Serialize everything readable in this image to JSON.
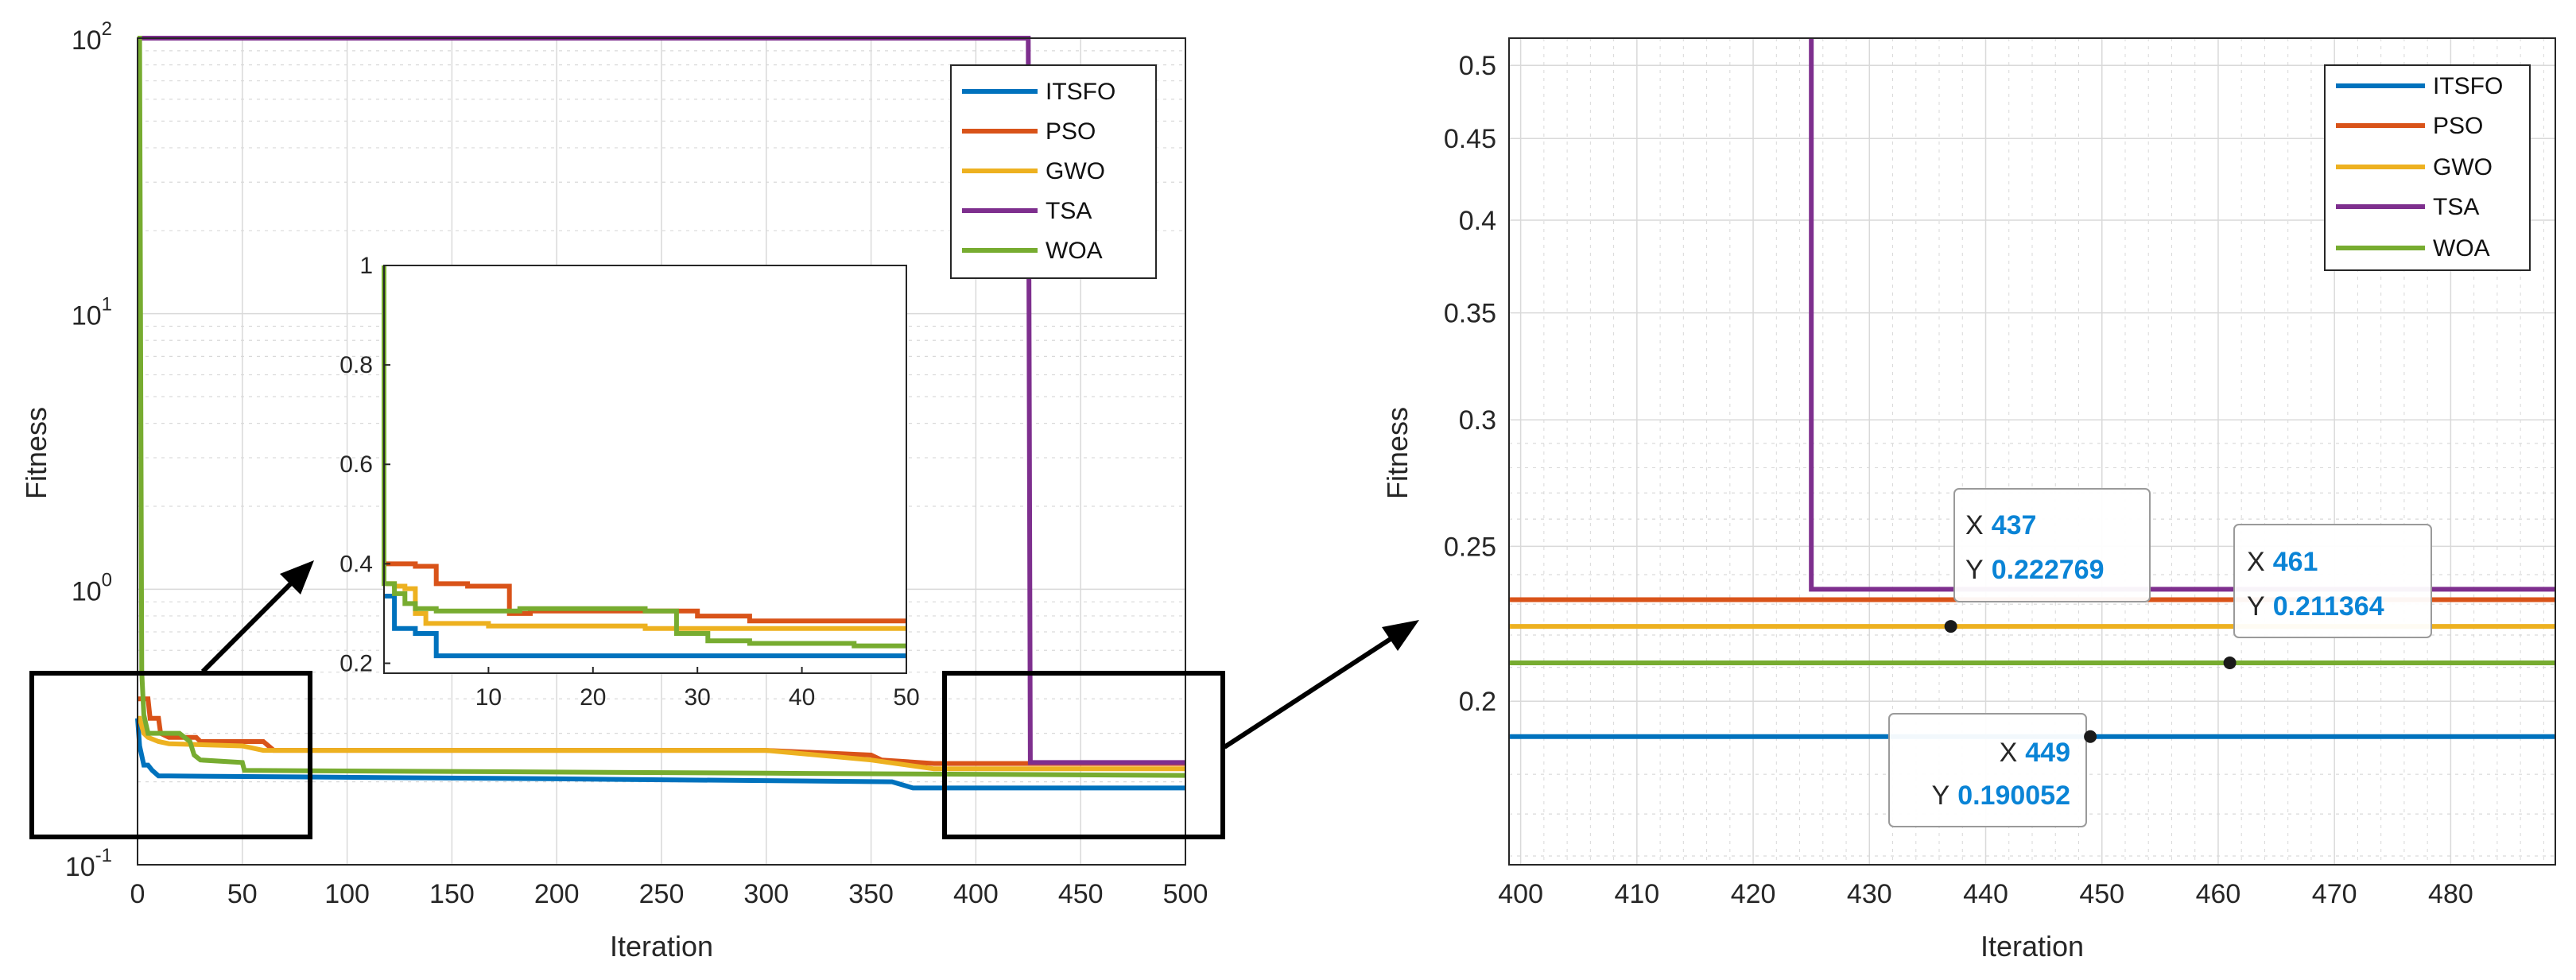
{
  "chart_data": [
    {
      "id": "main",
      "type": "line",
      "xlabel": "Iteration",
      "ylabel": "Fitness",
      "yscale": "log",
      "xlim": [
        0,
        500
      ],
      "ylim": [
        0.1,
        100
      ],
      "xticks": [
        0,
        50,
        100,
        150,
        200,
        250,
        300,
        350,
        400,
        450,
        500
      ],
      "xtick_labels": [
        "0",
        "50",
        "100",
        "150",
        "200",
        "250",
        "300",
        "350",
        "400",
        "450",
        "500"
      ],
      "yticks": [
        0.1,
        1,
        10,
        100
      ],
      "ytick_bases": [
        "10",
        "10",
        "10",
        "10"
      ],
      "ytick_exps": [
        "-1",
        "0",
        "1",
        "2"
      ],
      "grid": true,
      "legend_position": "top-right",
      "series": [
        {
          "name": "ITSFO",
          "color": "#0072BD",
          "x": [
            0,
            1,
            3,
            5,
            7,
            10,
            15,
            200,
            360,
            365,
            370,
            380,
            500
          ],
          "y": [
            0.34,
            0.27,
            0.23,
            0.23,
            0.22,
            0.21,
            0.21,
            0.205,
            0.2,
            0.195,
            0.19,
            0.19,
            0.19
          ]
        },
        {
          "name": "PSO",
          "color": "#D95319",
          "x": [
            0,
            1,
            5,
            6,
            10,
            11,
            15,
            28,
            30,
            60,
            65,
            300,
            350,
            355,
            380,
            500
          ],
          "y": [
            0.4,
            0.4,
            0.4,
            0.34,
            0.34,
            0.3,
            0.29,
            0.29,
            0.28,
            0.28,
            0.26,
            0.26,
            0.25,
            0.24,
            0.233,
            0.233
          ]
        },
        {
          "name": "GWO",
          "color": "#EDB120",
          "x": [
            0,
            1,
            3,
            5,
            10,
            15,
            50,
            60,
            300,
            350,
            380,
            500
          ],
          "y": [
            0.34,
            0.34,
            0.3,
            0.29,
            0.28,
            0.275,
            0.27,
            0.26,
            0.26,
            0.24,
            0.223,
            0.223
          ]
        },
        {
          "name": "TSA",
          "color": "#7E2F8E",
          "x": [
            0,
            1,
            424,
            425,
            426,
            500
          ],
          "y": [
            100,
            100,
            100,
            100,
            0.235,
            0.235
          ]
        },
        {
          "name": "WOA",
          "color": "#77AC30",
          "x": [
            0,
            1,
            2,
            3,
            5,
            10,
            20,
            25,
            27,
            30,
            50,
            51,
            300,
            500
          ],
          "y": [
            100,
            100,
            0.5,
            0.35,
            0.3,
            0.3,
            0.3,
            0.28,
            0.25,
            0.24,
            0.235,
            0.22,
            0.215,
            0.211
          ]
        }
      ]
    },
    {
      "id": "inset",
      "type": "line",
      "xlim": [
        0,
        50
      ],
      "ylim": [
        0.18,
        1
      ],
      "xticks": [
        10,
        20,
        30,
        40,
        50
      ],
      "xtick_labels": [
        "10",
        "20",
        "30",
        "40",
        "50"
      ],
      "yticks": [
        0.2,
        0.4,
        0.6,
        0.8,
        1
      ],
      "ytick_labels": [
        "0.2",
        "0.4",
        "0.6",
        "0.8",
        "1"
      ],
      "grid": false,
      "series": [
        {
          "name": "ITSFO",
          "color": "#0072BD",
          "x": [
            0,
            1,
            1,
            3,
            3,
            5,
            5,
            50
          ],
          "y": [
            0.335,
            0.335,
            0.27,
            0.27,
            0.26,
            0.26,
            0.215,
            0.215
          ]
        },
        {
          "name": "PSO",
          "color": "#D95319",
          "x": [
            0,
            3,
            3,
            5,
            5,
            8,
            8,
            12,
            12,
            14,
            14,
            30,
            30,
            35,
            35,
            50
          ],
          "y": [
            0.4,
            0.4,
            0.395,
            0.395,
            0.36,
            0.36,
            0.355,
            0.355,
            0.3,
            0.3,
            0.305,
            0.305,
            0.295,
            0.295,
            0.285,
            0.285
          ]
        },
        {
          "name": "GWO",
          "color": "#EDB120",
          "x": [
            0,
            1,
            1,
            2,
            2,
            3,
            3,
            4,
            4,
            10,
            10,
            25,
            25,
            50
          ],
          "y": [
            0.36,
            0.36,
            0.355,
            0.355,
            0.35,
            0.35,
            0.3,
            0.3,
            0.28,
            0.28,
            0.275,
            0.275,
            0.27,
            0.27
          ]
        },
        {
          "name": "WOA",
          "color": "#77AC30",
          "x": [
            0,
            0,
            1,
            1,
            2,
            2,
            3,
            3,
            5,
            5,
            13,
            13,
            25,
            25,
            28,
            28,
            31,
            31,
            35,
            35,
            45,
            45,
            50
          ],
          "y": [
            1.0,
            0.36,
            0.36,
            0.34,
            0.34,
            0.32,
            0.32,
            0.31,
            0.31,
            0.305,
            0.305,
            0.31,
            0.31,
            0.305,
            0.305,
            0.26,
            0.26,
            0.245,
            0.245,
            0.24,
            0.24,
            0.235,
            0.235
          ]
        }
      ]
    },
    {
      "id": "zoom",
      "type": "line",
      "xlabel": "Iteration",
      "ylabel": "Fitness",
      "yscale": "log",
      "xlim": [
        399,
        489
      ],
      "ylim": [
        0.158,
        0.52
      ],
      "xticks": [
        400,
        410,
        420,
        430,
        440,
        450,
        460,
        470,
        480
      ],
      "xtick_labels": [
        "400",
        "410",
        "420",
        "430",
        "440",
        "450",
        "460",
        "470",
        "480"
      ],
      "yticks": [
        0.2,
        0.25,
        0.3,
        0.35,
        0.4,
        0.45,
        0.5
      ],
      "ytick_labels": [
        "0.2",
        "0.25",
        "0.3",
        "0.35",
        "0.4",
        "0.45",
        "0.5"
      ],
      "yminor": [
        0.16,
        0.17,
        0.18,
        0.19,
        0.21,
        0.22,
        0.23,
        0.24,
        0.26,
        0.27,
        0.28,
        0.29
      ],
      "grid": true,
      "legend_position": "top-right",
      "series": [
        {
          "name": "ITSFO",
          "color": "#0072BD",
          "x": [
            399,
            489
          ],
          "y": [
            0.190052,
            0.190052
          ]
        },
        {
          "name": "PSO",
          "color": "#D95319",
          "x": [
            399,
            489
          ],
          "y": [
            0.2315,
            0.2315
          ]
        },
        {
          "name": "GWO",
          "color": "#EDB120",
          "x": [
            399,
            489
          ],
          "y": [
            0.222769,
            0.222769
          ]
        },
        {
          "name": "TSA",
          "color": "#7E2F8E",
          "x": [
            425,
            425,
            489
          ],
          "y": [
            0.52,
            0.235,
            0.235
          ]
        },
        {
          "name": "WOA",
          "color": "#77AC30",
          "x": [
            399,
            489
          ],
          "y": [
            0.211364,
            0.211364
          ]
        }
      ],
      "datatips": [
        {
          "x_label": "X",
          "y_label": "Y",
          "x_value": "437",
          "y_value": "0.222769",
          "x": 437,
          "y": 0.222769
        },
        {
          "x_label": "X",
          "y_label": "Y",
          "x_value": "461",
          "y_value": "0.211364",
          "x": 461,
          "y": 0.211364
        },
        {
          "x_label": "X",
          "y_label": "Y",
          "x_value": "449",
          "y_value": "0.190052",
          "x": 449,
          "y": 0.190052
        }
      ]
    }
  ],
  "colors": {
    "axis": "#262626",
    "grid": "#d9d9d9",
    "datatip_value": "#0a84d6",
    "zoom_box": "#000000"
  }
}
